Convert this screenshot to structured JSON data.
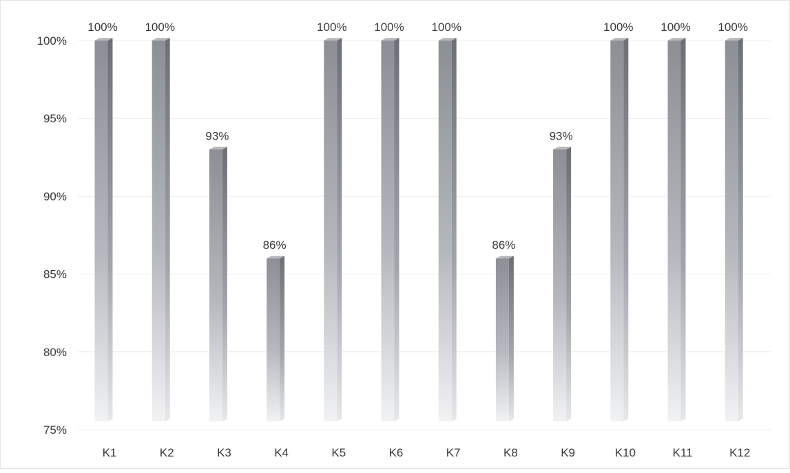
{
  "chart_data": {
    "type": "bar",
    "style": "3d-column",
    "categories": [
      "K1",
      "K2",
      "K3",
      "K4",
      "K5",
      "K6",
      "K7",
      "K8",
      "K9",
      "K10",
      "K11",
      "K12"
    ],
    "values": [
      100,
      100,
      93,
      86,
      100,
      100,
      100,
      86,
      93,
      100,
      100,
      100
    ],
    "data_labels": [
      "100%",
      "100%",
      "93%",
      "86%",
      "100%",
      "100%",
      "100%",
      "86%",
      "93%",
      "100%",
      "100%",
      "100%"
    ],
    "y_ticks": [
      75,
      80,
      85,
      90,
      95,
      100
    ],
    "y_tick_labels": [
      "75%",
      "80%",
      "85%",
      "90%",
      "95%",
      "100%"
    ],
    "ylim": [
      75,
      100
    ],
    "y_unit": "%",
    "grid": true,
    "legend": "none",
    "colors": {
      "bar_top": "#8c8f95",
      "bar_bottom": "#f1f2f4",
      "bar_side_dark": "#6c6f75",
      "bar_cap": "#b7b9be",
      "grid": "#ececec"
    }
  }
}
